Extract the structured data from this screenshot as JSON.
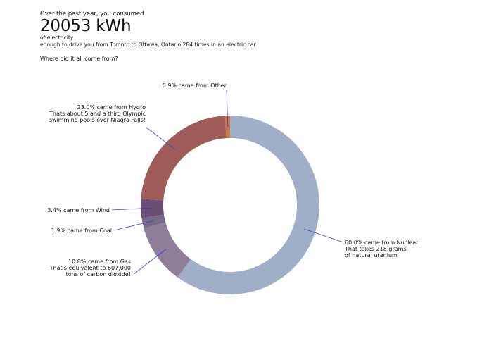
{
  "header": {
    "intro": "Over the past year, you consumed",
    "total": "20053 kWh",
    "unit_note": "of electricity",
    "comparison": "enough to drive you from Toronto to Ottawa, Ontario 284 times in an electric car",
    "question": "Where did it all come from?"
  },
  "chart_data": {
    "type": "pie",
    "variant": "donut",
    "categories": [
      "Nuclear",
      "Gas",
      "Coal",
      "Wind",
      "Hydro",
      "Other"
    ],
    "values": [
      60.0,
      10.8,
      1.9,
      3.4,
      23.0,
      0.9
    ],
    "colors": [
      "#9fafc8",
      "#8e7e99",
      "#766a87",
      "#6b4e74",
      "#9e5b58",
      "#cc7a47"
    ],
    "labels": [
      [
        "60.0% came from Nuclear",
        "That takes 218 grams",
        "of natural uranium"
      ],
      [
        "10.8% came from Gas",
        "That's equivalent to 607,000",
        "tons of carbon dioxide!"
      ],
      [
        "1.9% came from Coal"
      ],
      [
        "3.4% came from Wind"
      ],
      [
        "23.0% came from Hydro",
        "Thats about 5 and a third Olympic",
        "swimming pools over Niagra Falls!"
      ],
      [
        "0.9% came from Other"
      ]
    ],
    "label_side": [
      "right",
      "left",
      "left",
      "left",
      "left",
      "top"
    ],
    "leader_color": "#3b3be0"
  }
}
